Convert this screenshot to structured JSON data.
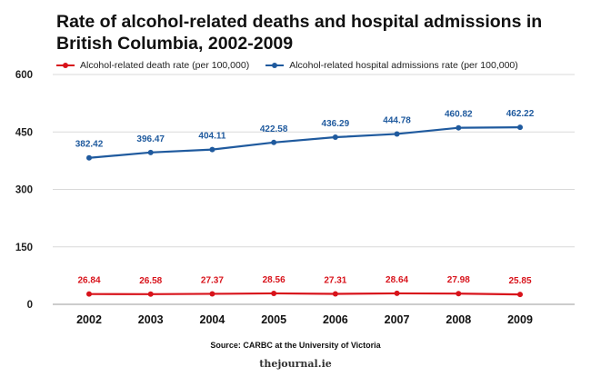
{
  "chart_data": {
    "type": "line",
    "title": "Rate of alcohol-related deaths and hospital admissions in British Columbia, 2002-2009",
    "categories": [
      "2002",
      "2003",
      "2004",
      "2005",
      "2006",
      "2007",
      "2008",
      "2009"
    ],
    "series": [
      {
        "name": "Alcohol-related death rate (per 100,000)",
        "color": "#d8131b",
        "values": [
          26.84,
          26.58,
          27.37,
          28.56,
          27.31,
          28.64,
          27.98,
          25.85
        ],
        "labels": [
          "26.84",
          "26.58",
          "27.37",
          "28.56",
          "27.31",
          "28.64",
          "27.98",
          "25.85"
        ]
      },
      {
        "name": "Alcohol-related hospital admissions rate (per 100,000)",
        "color": "#1f5a9e",
        "values": [
          382.42,
          396.47,
          404.11,
          422.58,
          436.29,
          444.78,
          460.82,
          462.22
        ],
        "labels": [
          "382.42",
          "396.47",
          "404.11",
          "422.58",
          "436.29",
          "444.78",
          "460.82",
          "462.22"
        ]
      }
    ],
    "ylim": [
      0,
      600
    ],
    "yticks": [
      "600",
      "450",
      "300",
      "150",
      "0"
    ],
    "ytick_values": [
      600,
      450,
      300,
      150,
      0
    ],
    "grid": true,
    "xlabel": "",
    "ylabel": "",
    "legend_position": "top"
  },
  "source": "Source: CARBC at the University of Victoria",
  "brand": "thejournal.ie"
}
